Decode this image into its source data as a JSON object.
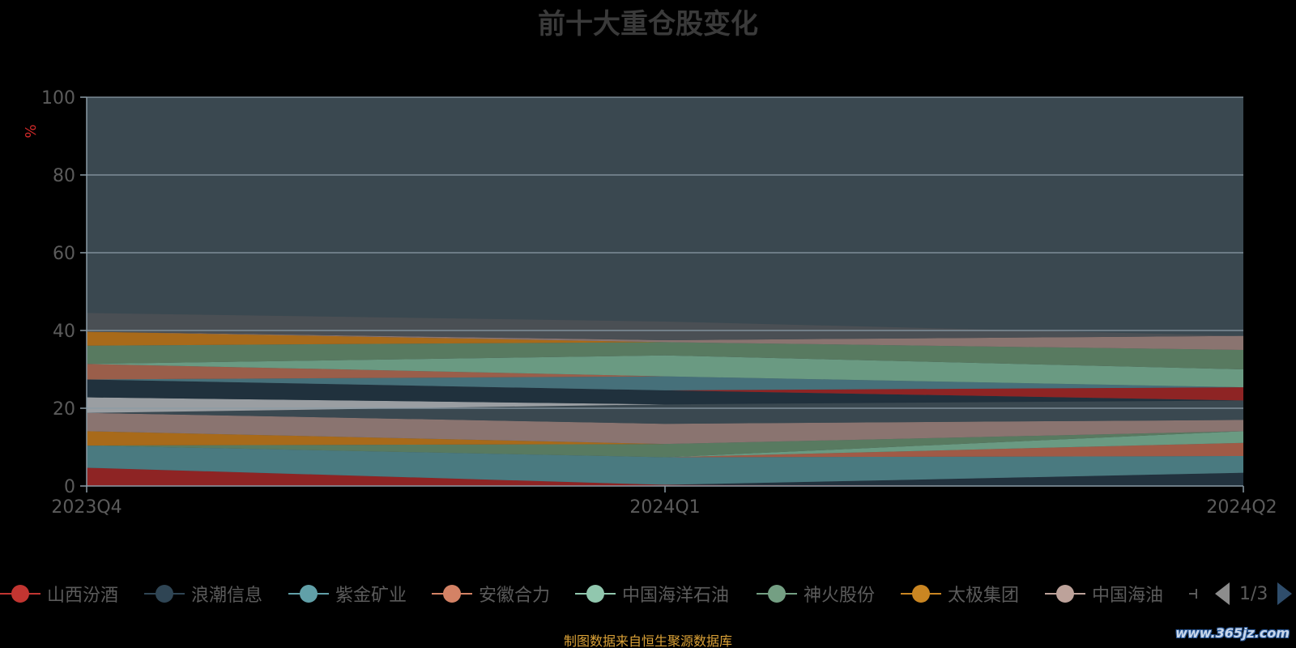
{
  "title": "前十大重仓股变化",
  "source_note": "制图数据来自恒生聚源数据库",
  "watermark": "www.365jz.com",
  "legend": {
    "page_indicator": "1/3"
  },
  "colors": {
    "background": "#000000",
    "plot_background": "#3a4850",
    "gridline": "#8a9ba6",
    "axis": "#8a9ba6",
    "tick_label": "#5b5b5b",
    "title": "#3a3a3a",
    "ylabel": "#d12a2a",
    "source": "#d9a036"
  },
  "chart_data": {
    "type": "area",
    "stacked": true,
    "title": "前十大重仓股变化",
    "xlabel": "",
    "ylabel": "%",
    "categories": [
      "2023Q4",
      "2024Q1",
      "2024Q2"
    ],
    "ylim": [
      0,
      100
    ],
    "yticks": [
      0,
      20,
      40,
      60,
      80,
      100
    ],
    "grid": true,
    "legend_position": "bottom",
    "series": [
      {
        "name": "山西汾酒",
        "values": [
          4.7,
          0.3,
          0
        ],
        "color": "#8e2424",
        "legend_color": "#c23531"
      },
      {
        "name": "浪潮信息",
        "values": [
          0,
          0,
          3.4
        ],
        "color": "#22323e",
        "legend_color": "#2f4554"
      },
      {
        "name": "紫金矿业",
        "values": [
          5.7,
          7.1,
          4.3
        ],
        "color": "#4a7a80",
        "legend_color": "#61a0a8"
      },
      {
        "name": "安徽合力",
        "values": [
          0,
          0,
          3.4
        ],
        "color": "#a05a46",
        "legend_color": "#d48265"
      },
      {
        "name": "中国海洋石油",
        "values": [
          0,
          0,
          3.0
        ],
        "color": "#6a9a82",
        "legend_color": "#91c7ae"
      },
      {
        "name": "神火股份",
        "values": [
          0,
          3.4,
          0
        ],
        "color": "#587a60",
        "legend_color": "#749f83"
      },
      {
        "name": "太极集团",
        "values": [
          3.7,
          0,
          0
        ],
        "color": "#a86a1a",
        "legend_color": "#ca8622"
      },
      {
        "name": "中国海油",
        "values": [
          4.7,
          5.2,
          2.9
        ],
        "color": "#8a7470",
        "legend_color": "#bda29a"
      },
      {
        "values": [
          0,
          5.0,
          5.0
        ],
        "color": "#3a4850"
      },
      {
        "values": [
          4.0,
          0,
          0
        ],
        "color": "#9a9ea2"
      },
      {
        "values": [
          4.6,
          3.6,
          0
        ],
        "color": "#20313d"
      },
      {
        "values": [
          0,
          0,
          3.4
        ],
        "color": "#8e2424"
      },
      {
        "values": [
          0,
          0,
          0
        ],
        "color": "#2a3a46"
      },
      {
        "values": [
          0,
          3.6,
          0
        ],
        "color": "#46707a"
      },
      {
        "values": [
          4.0,
          0,
          0
        ],
        "color": "#9a5e4a"
      },
      {
        "values": [
          0,
          5.4,
          4.6
        ],
        "color": "#6a9a82"
      },
      {
        "values": [
          4.7,
          3.4,
          5.0
        ],
        "color": "#587a60"
      },
      {
        "values": [
          3.6,
          0,
          0
        ],
        "color": "#a86a1a"
      },
      {
        "values": [
          0,
          0.5,
          3.6
        ],
        "color": "#8a7470"
      },
      {
        "values": [
          4.8,
          4.8,
          0
        ],
        "color": "#4a4f54"
      }
    ]
  }
}
